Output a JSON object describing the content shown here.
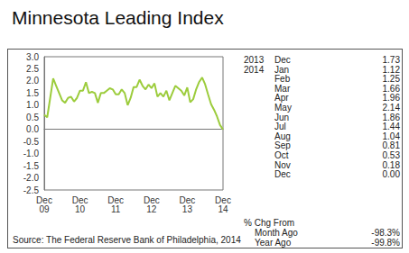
{
  "chart_data": {
    "type": "line",
    "title": "Minnesota Leading Index",
    "categories": [
      "Dec\n09",
      null,
      null,
      null,
      null,
      null,
      null,
      null,
      null,
      null,
      null,
      null,
      "Dec\n10",
      null,
      null,
      null,
      null,
      null,
      null,
      null,
      null,
      null,
      null,
      null,
      "Dec\n11",
      null,
      null,
      null,
      null,
      null,
      null,
      null,
      null,
      null,
      null,
      null,
      "Dec\n12",
      null,
      null,
      null,
      null,
      null,
      null,
      null,
      null,
      null,
      null,
      null,
      "Dec\n13",
      null,
      null,
      null,
      null,
      null,
      null,
      null,
      null,
      null,
      null,
      null,
      "Dec\n14"
    ],
    "values": [
      0.6,
      0.5,
      1.3,
      2.1,
      1.8,
      1.5,
      1.2,
      1.1,
      1.3,
      1.35,
      1.15,
      1.3,
      1.6,
      1.6,
      1.95,
      1.5,
      1.55,
      1.5,
      1.1,
      1.5,
      1.5,
      1.6,
      1.7,
      1.65,
      1.45,
      1.45,
      1.65,
      1.5,
      1.0,
      1.3,
      1.75,
      1.75,
      2.05,
      1.8,
      1.65,
      1.85,
      1.7,
      1.9,
      1.35,
      1.5,
      1.35,
      1.6,
      1.2,
      1.5,
      1.8,
      1.7,
      1.6,
      1.4,
      1.73,
      1.12,
      1.25,
      1.66,
      1.96,
      2.14,
      1.86,
      1.44,
      1.04,
      0.81,
      0.53,
      0.18,
      0.0
    ],
    "color": "#9ccc3c",
    "ylim": [
      -2.5,
      3.0
    ],
    "yticks": [
      {
        "value": -2.5,
        "label": "-2.5"
      },
      {
        "value": -2,
        "label": "-2.0"
      },
      {
        "value": -1.5,
        "label": "-1.5"
      },
      {
        "value": -1,
        "label": "-1.0"
      },
      {
        "value": -0.5,
        "label": "-0.5"
      },
      {
        "value": 0,
        "label": "0.0"
      },
      {
        "value": 0.5,
        "label": "0.5"
      },
      {
        "value": 1,
        "label": "1.0"
      },
      {
        "value": 1.5,
        "label": "1.5"
      },
      {
        "value": 2,
        "label": "2.0"
      },
      {
        "value": 2.5,
        "label": "2.5"
      },
      {
        "value": 3,
        "label": "3.0"
      }
    ],
    "grid": false
  },
  "side_table": {
    "rows": [
      {
        "year": "2013",
        "month": "Dec",
        "value": "1.73"
      },
      {
        "year": "2014",
        "month": "Jan",
        "value": "1.12"
      },
      {
        "month": "Feb",
        "value": "1.25"
      },
      {
        "month": "Mar",
        "value": "1.66"
      },
      {
        "month": "Apr",
        "value": "1.96"
      },
      {
        "month": "May",
        "value": "2.14"
      },
      {
        "month": "Jun",
        "value": "1.86"
      },
      {
        "month": "Jul",
        "value": "1.44"
      },
      {
        "month": "Aug",
        "value": "1.04"
      },
      {
        "month": "Sep",
        "value": "0.81"
      },
      {
        "month": "Oct",
        "value": "0.53"
      },
      {
        "month": "Nov",
        "value": "0.18"
      },
      {
        "month": "Dec",
        "value": "0.00"
      }
    ],
    "change_title": "% Chg From",
    "change_rows": [
      {
        "label": "Month Ago",
        "value": "-98.3%"
      },
      {
        "label": "Year Ago",
        "value": "-99.8%"
      }
    ]
  },
  "source": "Source: The Federal Reserve Bank of Philadelphia, 2014"
}
